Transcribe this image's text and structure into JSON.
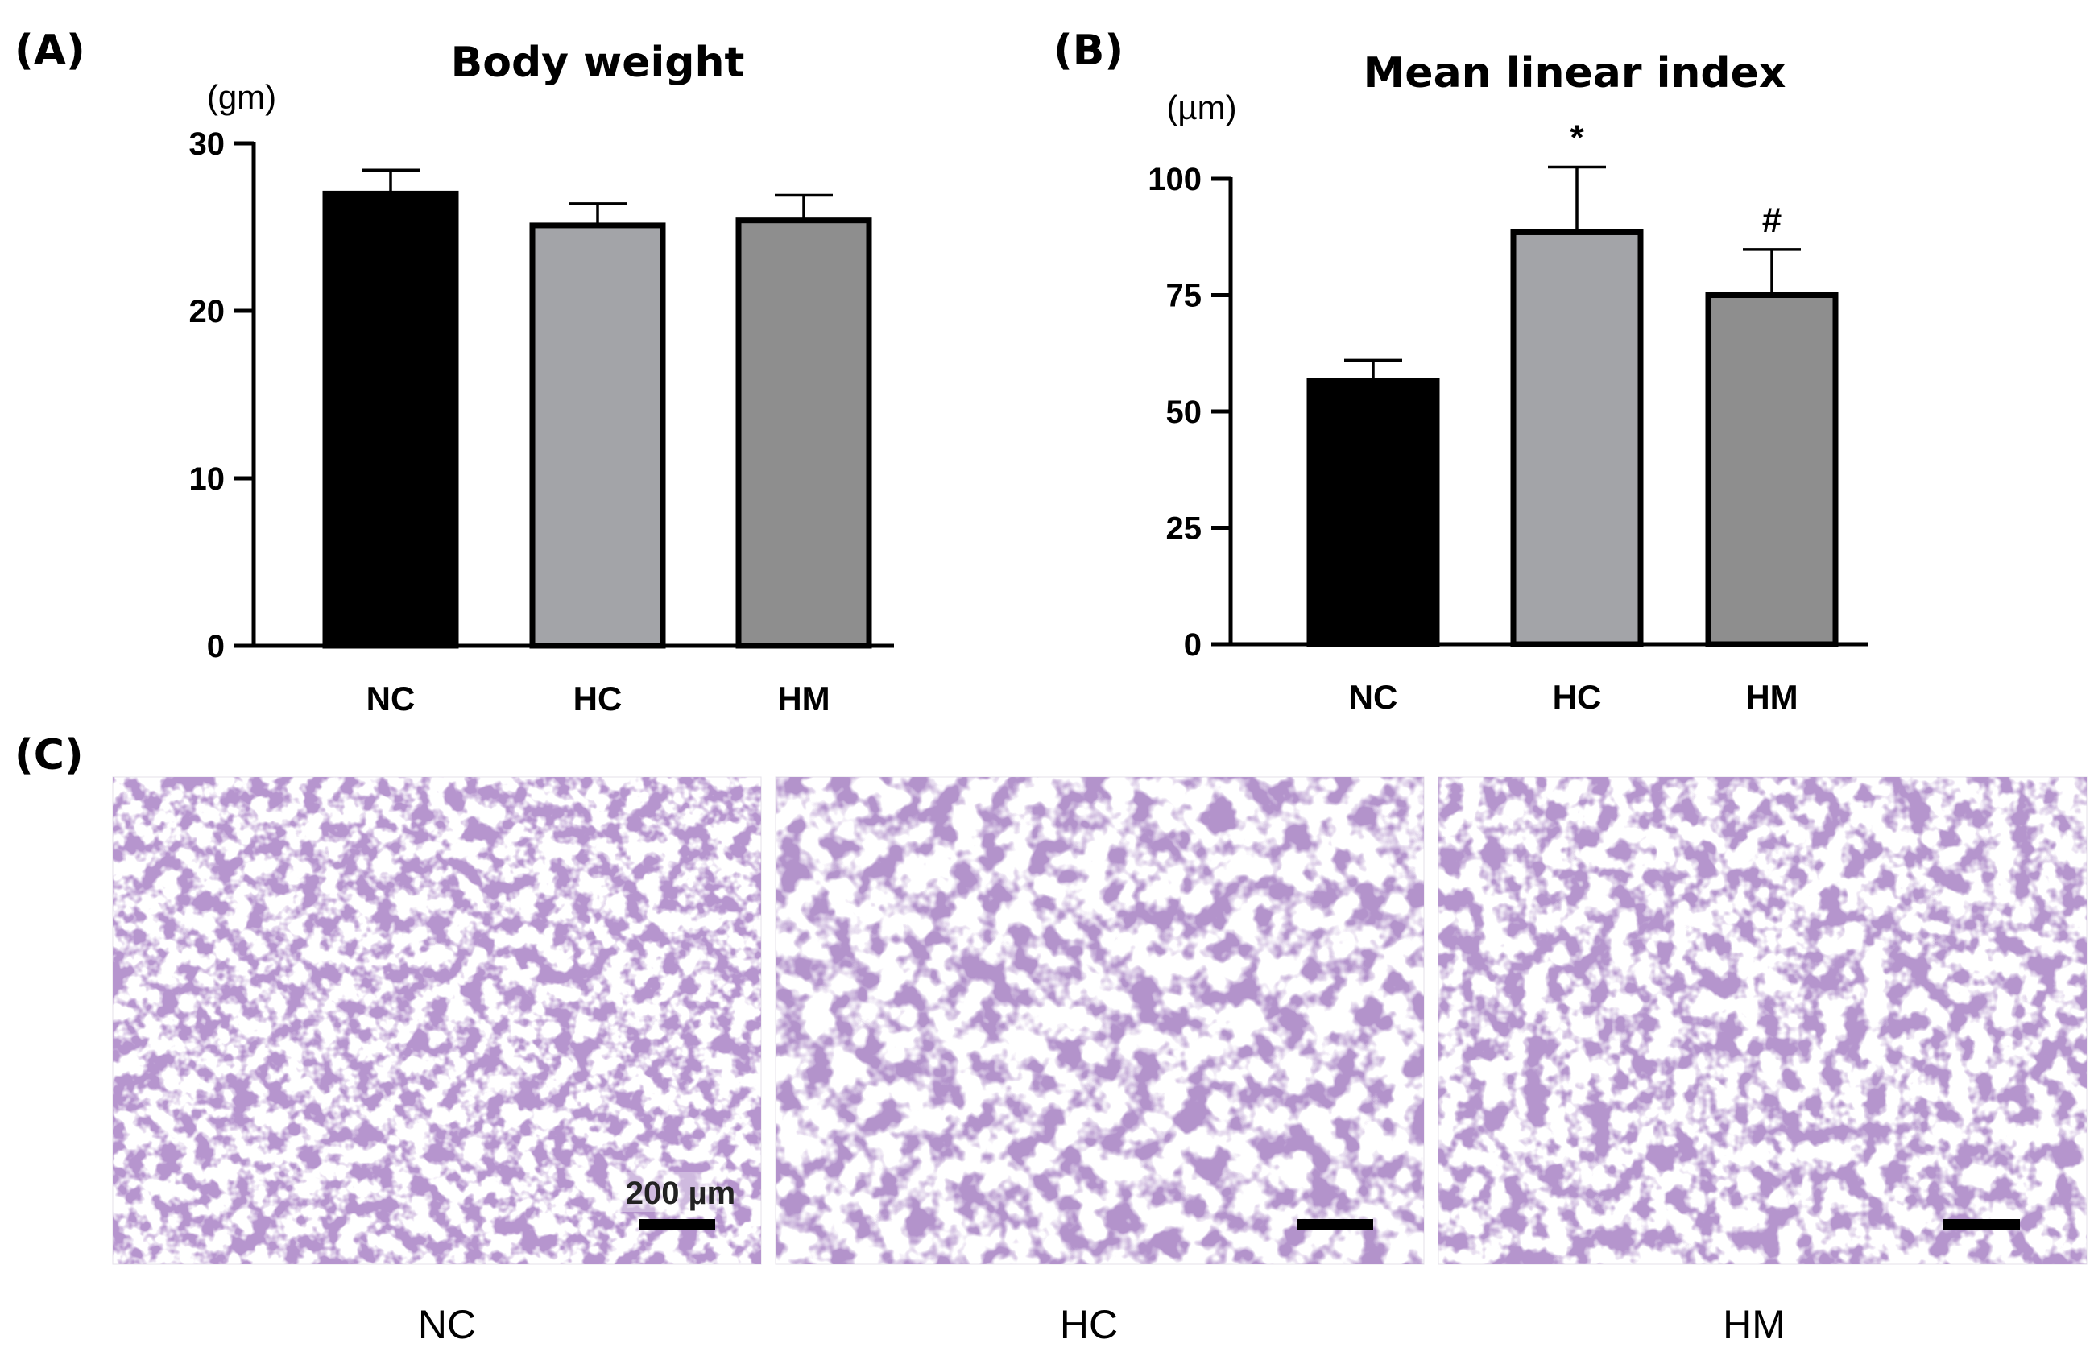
{
  "chart_data": [
    {
      "panel": "(A)",
      "type": "bar",
      "title": "Body weight",
      "ylabel": "(gm)",
      "xlabel": "",
      "categories": [
        "NC",
        "HC",
        "HM"
      ],
      "values": [
        27.0,
        25.1,
        25.4
      ],
      "errors": [
        1.4,
        1.3,
        1.5
      ],
      "colors": [
        "#000000",
        "#a3a4a8",
        "#8e8e8e"
      ],
      "ylim": [
        0,
        30
      ],
      "yticks": [
        0,
        10,
        20,
        30
      ],
      "annotations": [
        "",
        "",
        ""
      ]
    },
    {
      "panel": "(B)",
      "type": "bar",
      "title": "Mean linear index",
      "ylabel": "(µm)",
      "xlabel": "",
      "categories": [
        "NC",
        "HC",
        "HM"
      ],
      "values": [
        56.5,
        88.5,
        75.0
      ],
      "errors": [
        4.5,
        14.0,
        9.8
      ],
      "colors": [
        "#000000",
        "#a3a4a8",
        "#8e8e8e"
      ],
      "ylim": [
        0,
        100
      ],
      "yticks": [
        0,
        25,
        50,
        75,
        100
      ],
      "annotations": [
        "",
        "*",
        "#"
      ]
    }
  ],
  "panel_c": {
    "letter": "(C)",
    "labels": [
      "NC",
      "HC",
      "HM"
    ],
    "scale_bar_text": "200 µm",
    "stain_color": "#7a4f9e",
    "background_color": "#ffffff"
  }
}
